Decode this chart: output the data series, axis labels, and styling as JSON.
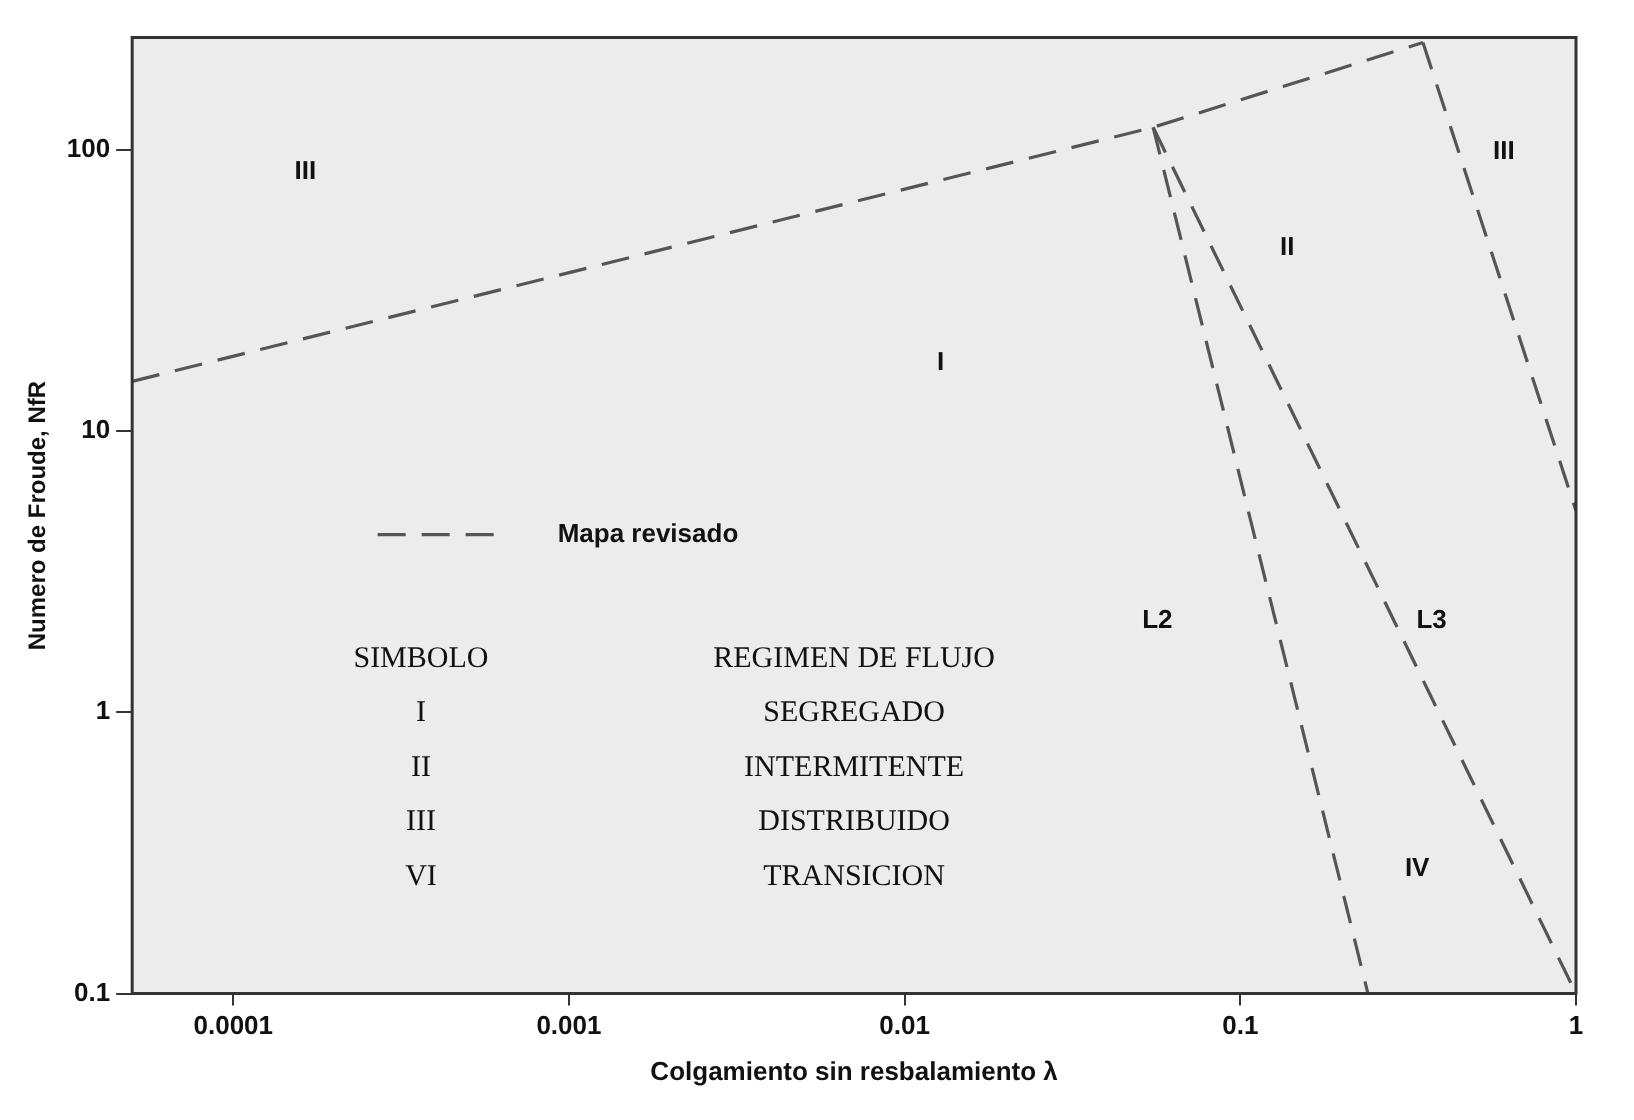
{
  "chart_data": {
    "type": "line",
    "xlabel": "Colgamiento sin resbalamiento λ",
    "ylabel": "Numero de Froude, NfR",
    "log": "xy",
    "grid": false,
    "legend": "left",
    "marker": "none",
    "line_style": "dashed",
    "xlim": [
      5e-05,
      1
    ],
    "xticks": [
      0.0001,
      0.001,
      0.01,
      0.1,
      1
    ],
    "ylim": [
      0.1,
      250
    ],
    "yticks": [
      0.1,
      1,
      10,
      100
    ],
    "series": [
      {
        "name": "Mapa revisado",
        "color": "#555555",
        "x": [
          5e-05,
          0.055,
          0.35
        ],
        "values": [
          15,
          120,
          240
        ]
      },
      {
        "color": "#555555",
        "x": [
          0.055,
          0.24
        ],
        "values": [
          120,
          0.1
        ]
      },
      {
        "color": "#555555",
        "x": [
          0.055,
          1
        ],
        "values": [
          120,
          0.1
        ]
      },
      {
        "color": "#555555",
        "x": [
          0.35,
          1
        ],
        "values": [
          240,
          5.2
        ]
      }
    ],
    "annotations": [
      "III",
      "I",
      "II",
      "III",
      "L2",
      "L3",
      "IV",
      "SIMBOLO",
      "REGIMEN DE FLUJO",
      "I",
      "SEGREGADO",
      "II",
      "INTERMITENTE",
      "III",
      "DISTRIBUIDO",
      "VI",
      "TRANSICION"
    ]
  }
}
